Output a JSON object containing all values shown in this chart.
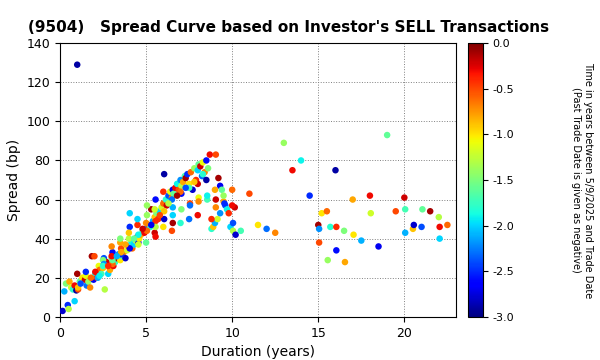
{
  "title": "(9504)   Spread Curve based on Investor's SELL Transactions",
  "xlabel": "Duration (years)",
  "ylabel": "Spread (bp)",
  "xlim": [
    0,
    23
  ],
  "ylim": [
    0,
    140
  ],
  "xticks": [
    0,
    5,
    10,
    15,
    20
  ],
  "yticks": [
    0,
    20,
    40,
    60,
    80,
    100,
    120,
    140
  ],
  "colorbar_label_line1": "Time in years between 5/9/2025 and Trade Date",
  "colorbar_label_line2": "(Past Trade Date is given as negative)",
  "cbar_min": -3.0,
  "cbar_max": 0.0,
  "cbar_ticks": [
    0.0,
    -0.5,
    -1.0,
    -1.5,
    -2.0,
    -2.5,
    -3.0
  ],
  "points": [
    [
      0.15,
      3.0,
      -2.8
    ],
    [
      0.25,
      13.0,
      -2.1
    ],
    [
      0.35,
      17.0,
      -1.5
    ],
    [
      0.45,
      6.0,
      -2.5
    ],
    [
      0.55,
      18.0,
      -0.8
    ],
    [
      0.65,
      15.0,
      -1.2
    ],
    [
      0.75,
      14.0,
      -1.8
    ],
    [
      0.85,
      16.0,
      -0.3
    ],
    [
      0.95,
      13.5,
      -2.9
    ],
    [
      1.05,
      14.0,
      -0.5
    ],
    [
      1.15,
      18.0,
      -1.6
    ],
    [
      1.3,
      20.0,
      -1.0
    ],
    [
      1.45,
      19.0,
      -0.2
    ],
    [
      1.55,
      16.0,
      -2.3
    ],
    [
      1.65,
      18.0,
      -1.4
    ],
    [
      1.75,
      15.0,
      -0.7
    ],
    [
      1.85,
      31.0,
      -0.1
    ],
    [
      1.95,
      19.0,
      -2.7
    ],
    [
      2.05,
      22.0,
      -1.9
    ],
    [
      2.15,
      20.0,
      -0.4
    ],
    [
      2.2,
      20.0,
      -2.1
    ],
    [
      2.25,
      26.0,
      -1.1
    ],
    [
      2.3,
      24.0,
      -0.6
    ],
    [
      2.4,
      22.0,
      -1.7
    ],
    [
      2.5,
      25.0,
      -0.9
    ],
    [
      2.55,
      30.0,
      -2.4
    ],
    [
      2.6,
      14.0,
      -1.3
    ],
    [
      2.7,
      28.0,
      -0.2
    ],
    [
      2.8,
      22.0,
      -2.0
    ],
    [
      2.9,
      24.0,
      -0.8
    ],
    [
      3.0,
      30.0,
      -1.5
    ],
    [
      3.05,
      33.0,
      -2.6
    ],
    [
      3.1,
      26.0,
      -0.3
    ],
    [
      3.2,
      28.0,
      -1.8
    ],
    [
      3.3,
      30.0,
      -0.1
    ],
    [
      3.4,
      32.0,
      -2.2
    ],
    [
      3.5,
      29.0,
      -1.0
    ],
    [
      3.55,
      35.0,
      -0.5
    ],
    [
      3.6,
      31.0,
      -1.6
    ],
    [
      3.7,
      33.0,
      -0.7
    ],
    [
      3.8,
      30.0,
      -2.8
    ],
    [
      3.9,
      34.0,
      -1.2
    ],
    [
      4.0,
      36.0,
      -0.4
    ],
    [
      4.05,
      46.0,
      -2.5
    ],
    [
      4.15,
      38.0,
      -1.9
    ],
    [
      4.2,
      35.0,
      -0.6
    ],
    [
      4.3,
      37.0,
      -2.0
    ],
    [
      4.4,
      39.0,
      -1.3
    ],
    [
      4.5,
      41.0,
      -0.2
    ],
    [
      4.55,
      38.0,
      -2.7
    ],
    [
      4.6,
      40.0,
      -1.0
    ],
    [
      4.7,
      42.0,
      -0.8
    ],
    [
      4.8,
      44.0,
      -1.7
    ],
    [
      4.9,
      43.0,
      -0.3
    ],
    [
      5.0,
      45.0,
      -2.3
    ],
    [
      5.05,
      52.0,
      -1.4
    ],
    [
      5.15,
      47.0,
      -0.5
    ],
    [
      5.25,
      46.0,
      -1.8
    ],
    [
      5.3,
      55.0,
      -0.1
    ],
    [
      5.4,
      49.0,
      -2.1
    ],
    [
      5.5,
      51.0,
      -0.9
    ],
    [
      5.55,
      60.0,
      -2.6
    ],
    [
      5.6,
      53.0,
      -1.5
    ],
    [
      5.7,
      50.0,
      -0.4
    ],
    [
      5.8,
      54.0,
      -2.0
    ],
    [
      5.9,
      56.0,
      -1.2
    ],
    [
      6.0,
      58.0,
      -0.6
    ],
    [
      6.05,
      73.0,
      -2.9
    ],
    [
      6.15,
      60.0,
      -1.8
    ],
    [
      6.2,
      57.0,
      -0.2
    ],
    [
      6.3,
      62.0,
      -2.4
    ],
    [
      6.4,
      64.0,
      -1.1
    ],
    [
      6.5,
      61.0,
      -0.7
    ],
    [
      6.55,
      65.0,
      -2.7
    ],
    [
      6.6,
      63.0,
      -1.6
    ],
    [
      6.7,
      66.0,
      -0.3
    ],
    [
      6.8,
      68.0,
      -1.9
    ],
    [
      6.9,
      65.0,
      -0.5
    ],
    [
      7.0,
      70.0,
      -2.2
    ],
    [
      7.05,
      67.0,
      -1.3
    ],
    [
      7.15,
      69.0,
      -0.8
    ],
    [
      7.25,
      72.0,
      -1.7
    ],
    [
      7.3,
      71.0,
      -0.1
    ],
    [
      7.4,
      73.0,
      -2.5
    ],
    [
      7.5,
      68.0,
      -1.0
    ],
    [
      7.6,
      74.0,
      -0.6
    ],
    [
      7.7,
      65.0,
      -2.8
    ],
    [
      7.8,
      76.0,
      -1.4
    ],
    [
      7.9,
      70.0,
      -0.4
    ],
    [
      8.0,
      75.0,
      -2.0
    ],
    [
      8.05,
      78.0,
      -1.6
    ],
    [
      8.15,
      77.0,
      -0.2
    ],
    [
      8.25,
      72.0,
      -2.3
    ],
    [
      8.3,
      79.0,
      -1.1
    ],
    [
      8.4,
      74.0,
      -0.7
    ],
    [
      8.5,
      80.0,
      -2.6
    ],
    [
      8.6,
      76.0,
      -1.5
    ],
    [
      8.7,
      83.0,
      -0.3
    ],
    [
      8.8,
      45.0,
      -1.8
    ],
    [
      8.9,
      46.0,
      -0.9
    ],
    [
      9.0,
      48.0,
      -2.1
    ],
    [
      9.05,
      83.0,
      -0.5
    ],
    [
      9.15,
      50.0,
      -1.2
    ],
    [
      9.2,
      71.0,
      -0.1
    ],
    [
      9.3,
      67.0,
      -2.7
    ],
    [
      9.4,
      65.0,
      -1.6
    ],
    [
      9.5,
      59.0,
      -0.8
    ],
    [
      9.6,
      57.0,
      -2.4
    ],
    [
      9.7,
      55.0,
      -1.9
    ],
    [
      9.8,
      53.0,
      -0.4
    ],
    [
      9.9,
      46.0,
      -2.0
    ],
    [
      10.0,
      65.0,
      -0.6
    ],
    [
      10.05,
      44.0,
      -1.3
    ],
    [
      10.15,
      56.0,
      -0.2
    ],
    [
      10.2,
      42.0,
      -2.8
    ],
    [
      10.5,
      44.0,
      -1.7
    ],
    [
      11.0,
      63.0,
      -0.5
    ],
    [
      11.5,
      47.0,
      -1.0
    ],
    [
      12.0,
      45.0,
      -2.3
    ],
    [
      12.5,
      43.0,
      -0.7
    ],
    [
      13.0,
      89.0,
      -1.4
    ],
    [
      13.5,
      75.0,
      -0.3
    ],
    [
      14.0,
      80.0,
      -1.9
    ],
    [
      14.5,
      62.0,
      -2.5
    ],
    [
      15.0,
      47.0,
      -0.1
    ],
    [
      15.05,
      45.0,
      -2.2
    ],
    [
      15.2,
      53.0,
      -1.0
    ],
    [
      15.5,
      54.0,
      -0.6
    ],
    [
      15.7,
      46.0,
      -1.8
    ],
    [
      16.0,
      75.0,
      -2.9
    ],
    [
      16.05,
      46.0,
      -0.4
    ],
    [
      16.5,
      44.0,
      -1.5
    ],
    [
      17.0,
      60.0,
      -0.8
    ],
    [
      17.5,
      39.0,
      -2.1
    ],
    [
      18.0,
      62.0,
      -0.3
    ],
    [
      18.05,
      53.0,
      -1.2
    ],
    [
      18.5,
      36.0,
      -2.7
    ],
    [
      19.0,
      93.0,
      -1.6
    ],
    [
      19.5,
      54.0,
      -0.5
    ],
    [
      20.0,
      61.0,
      -0.2
    ],
    [
      20.05,
      55.0,
      -1.7
    ],
    [
      20.5,
      45.0,
      -0.9
    ],
    [
      21.0,
      46.0,
      -2.4
    ],
    [
      21.5,
      54.0,
      -0.1
    ],
    [
      22.0,
      51.0,
      -1.3
    ],
    [
      22.05,
      40.0,
      -2.0
    ],
    [
      22.5,
      47.0,
      -0.6
    ],
    [
      1.0,
      129.0,
      -2.9
    ],
    [
      3.5,
      38.0,
      -0.8
    ],
    [
      4.0,
      40.0,
      -1.3
    ],
    [
      4.5,
      47.0,
      -0.4
    ],
    [
      5.0,
      38.0,
      -1.6
    ],
    [
      5.5,
      43.0,
      -0.2
    ],
    [
      6.0,
      46.0,
      -1.0
    ],
    [
      6.5,
      44.0,
      -0.5
    ],
    [
      7.0,
      48.0,
      -1.8
    ],
    [
      7.5,
      50.0,
      -2.3
    ],
    [
      8.0,
      52.0,
      -0.3
    ],
    [
      3.0,
      36.0,
      -0.7
    ],
    [
      2.5,
      29.0,
      -1.5
    ],
    [
      4.05,
      53.0,
      -2.0
    ],
    [
      5.05,
      57.0,
      -1.4
    ],
    [
      6.05,
      54.0,
      -0.9
    ],
    [
      7.05,
      63.0,
      -2.6
    ],
    [
      8.05,
      61.0,
      -1.1
    ],
    [
      9.05,
      56.0,
      -0.7
    ],
    [
      10.05,
      48.0,
      -2.4
    ],
    [
      4.55,
      37.0,
      -1.2
    ],
    [
      5.55,
      41.0,
      -0.3
    ],
    [
      6.55,
      56.0,
      -2.1
    ],
    [
      7.55,
      58.0,
      -0.5
    ],
    [
      8.55,
      60.0,
      -1.7
    ],
    [
      3.05,
      27.0,
      -0.6
    ],
    [
      3.55,
      32.0,
      -2.5
    ],
    [
      4.55,
      42.0,
      -1.9
    ],
    [
      5.55,
      49.0,
      -0.4
    ],
    [
      6.55,
      52.0,
      -2.0
    ],
    [
      1.5,
      21.0,
      -1.1
    ],
    [
      2.05,
      23.0,
      -0.3
    ],
    [
      2.55,
      27.0,
      -2.2
    ],
    [
      3.05,
      29.0,
      -1.6
    ],
    [
      3.55,
      33.0,
      -0.8
    ],
    [
      4.05,
      35.0,
      -2.7
    ],
    [
      5.05,
      44.0,
      -0.6
    ],
    [
      5.55,
      46.0,
      -1.3
    ],
    [
      6.05,
      50.0,
      -2.8
    ],
    [
      6.55,
      48.0,
      -0.1
    ],
    [
      7.05,
      55.0,
      -1.5
    ],
    [
      7.55,
      57.0,
      -2.3
    ],
    [
      8.05,
      59.0,
      -0.7
    ],
    [
      8.55,
      62.0,
      -1.9
    ],
    [
      9.05,
      60.0,
      -0.2
    ],
    [
      9.55,
      58.0,
      -2.5
    ],
    [
      15.05,
      38.0,
      -0.5
    ],
    [
      15.55,
      29.0,
      -1.4
    ],
    [
      16.05,
      34.0,
      -2.6
    ],
    [
      16.55,
      28.0,
      -0.8
    ],
    [
      17.05,
      42.0,
      -1.0
    ],
    [
      20.05,
      43.0,
      -2.1
    ],
    [
      21.05,
      55.0,
      -1.6
    ],
    [
      22.05,
      46.0,
      -0.3
    ],
    [
      20.55,
      47.0,
      -2.8
    ],
    [
      0.5,
      4.0,
      -1.3
    ],
    [
      1.05,
      15.0,
      -0.9
    ],
    [
      0.85,
      8.0,
      -2.0
    ],
    [
      1.0,
      22.0,
      -0.1
    ],
    [
      1.5,
      23.0,
      -2.5
    ],
    [
      2.0,
      31.0,
      -0.5
    ],
    [
      2.5,
      26.0,
      -1.8
    ],
    [
      3.0,
      31.0,
      -0.3
    ],
    [
      3.5,
      40.0,
      -1.5
    ],
    [
      4.0,
      43.0,
      -0.9
    ],
    [
      4.5,
      50.0,
      -2.0
    ],
    [
      5.0,
      48.0,
      -0.7
    ],
    [
      5.5,
      55.0,
      -1.2
    ],
    [
      6.0,
      64.0,
      -0.4
    ],
    [
      6.5,
      60.0,
      -2.3
    ],
    [
      7.0,
      64.0,
      -0.6
    ],
    [
      7.5,
      66.0,
      -1.7
    ],
    [
      8.0,
      68.0,
      -0.2
    ],
    [
      8.5,
      70.0,
      -2.9
    ],
    [
      9.0,
      65.0,
      -0.8
    ],
    [
      9.5,
      62.0,
      -1.4
    ],
    [
      10.0,
      57.0,
      -0.3
    ],
    [
      1.2,
      17.0,
      -2.4
    ],
    [
      1.8,
      20.0,
      -0.6
    ],
    [
      2.3,
      21.0,
      -1.9
    ],
    [
      2.8,
      26.0,
      -0.4
    ],
    [
      3.3,
      31.0,
      -2.1
    ],
    [
      3.8,
      37.0,
      -0.8
    ],
    [
      4.3,
      40.0,
      -1.6
    ],
    [
      4.8,
      45.0,
      -0.2
    ],
    [
      5.3,
      47.0,
      -2.7
    ],
    [
      5.8,
      52.0,
      -0.5
    ],
    [
      6.3,
      58.0,
      -1.3
    ],
    [
      6.8,
      62.0,
      -0.1
    ],
    [
      7.3,
      66.0,
      -2.4
    ],
    [
      7.8,
      69.0,
      -0.9
    ],
    [
      8.3,
      73.0,
      -1.8
    ],
    [
      8.8,
      50.0,
      -0.4
    ],
    [
      9.3,
      53.0,
      -2.2
    ]
  ]
}
